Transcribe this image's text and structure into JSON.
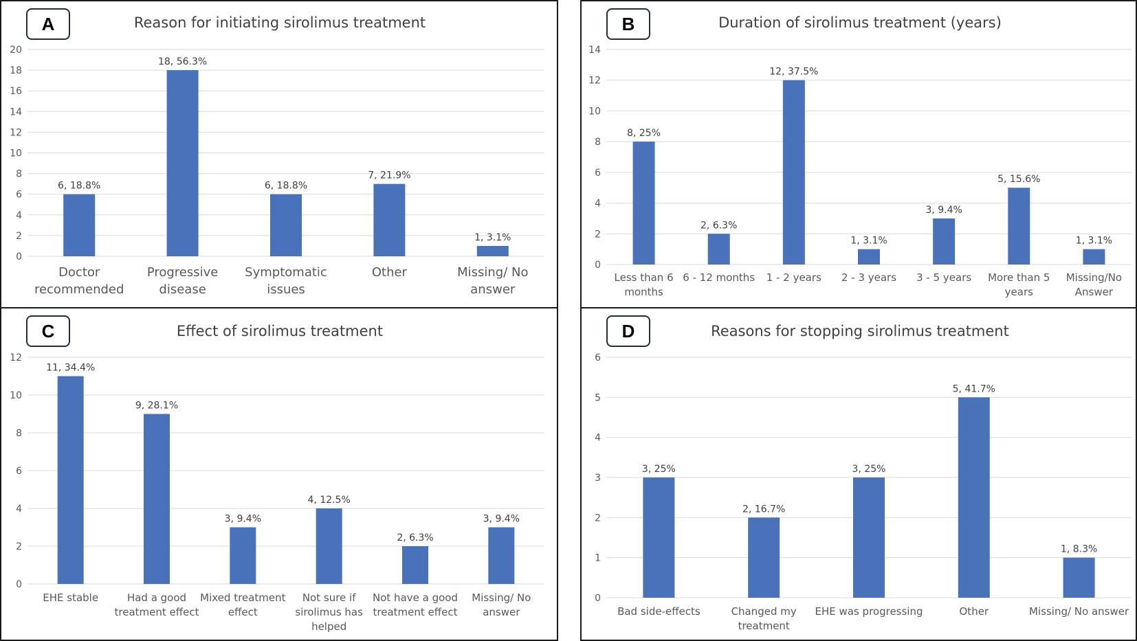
{
  "chart_data": [
    {
      "panel": "A",
      "type": "bar",
      "title": "Reason for initiating sirolimus treatment",
      "ylim": [
        0,
        20
      ],
      "ytick_step": 2,
      "categories": [
        [
          "Doctor",
          "recommended"
        ],
        [
          "Progressive",
          "disease"
        ],
        [
          "Symptomatic",
          "issues"
        ],
        [
          "Other"
        ],
        [
          "Missing/ No",
          "answer"
        ]
      ],
      "values": [
        6,
        18,
        6,
        7,
        1
      ],
      "data_labels": [
        "6, 18.8%",
        "18, 56.3%",
        "6, 18.8%",
        "7, 21.9%",
        "1, 3.1%"
      ],
      "xlabel": "",
      "ylabel": "",
      "grid": true
    },
    {
      "panel": "B",
      "type": "bar",
      "title": "Duration of sirolimus treatment (years)",
      "ylim": [
        0,
        14
      ],
      "ytick_step": 2,
      "categories": [
        [
          "Less than 6",
          "months"
        ],
        [
          "6 - 12 months"
        ],
        [
          "1 - 2 years"
        ],
        [
          "2 - 3 years"
        ],
        [
          "3 - 5 years"
        ],
        [
          "More than 5",
          "years"
        ],
        [
          "Missing/No",
          "Answer"
        ]
      ],
      "values": [
        8,
        2,
        12,
        1,
        3,
        5,
        1
      ],
      "data_labels": [
        "8, 25%",
        "2, 6.3%",
        "12, 37.5%",
        "1, 3.1%",
        "3, 9.4%",
        "5, 15.6%",
        "1, 3.1%"
      ],
      "xlabel": "",
      "ylabel": "",
      "grid": true
    },
    {
      "panel": "C",
      "type": "bar",
      "title": "Effect of sirolimus treatment",
      "ylim": [
        0,
        12
      ],
      "ytick_step": 2,
      "categories": [
        [
          "EHE stable"
        ],
        [
          "Had a good",
          "treatment effect"
        ],
        [
          "Mixed treatment",
          "effect"
        ],
        [
          "Not sure if",
          "sirolimus has",
          "helped"
        ],
        [
          "Not have a good",
          "treatment effect"
        ],
        [
          "Missing/ No",
          "answer"
        ]
      ],
      "values": [
        11,
        9,
        3,
        4,
        2,
        3
      ],
      "data_labels": [
        "11, 34.4%",
        "9, 28.1%",
        "3, 9.4%",
        "4, 12.5%",
        "2, 6.3%",
        "3, 9.4%"
      ],
      "xlabel": "",
      "ylabel": "",
      "grid": true
    },
    {
      "panel": "D",
      "type": "bar",
      "title": "Reasons for stopping sirolimus treatment",
      "ylim": [
        0,
        6
      ],
      "ytick_step": 1,
      "categories": [
        [
          "Bad side-effects"
        ],
        [
          "Changed my",
          "treatment"
        ],
        [
          "EHE was progressing"
        ],
        [
          "Other"
        ],
        [
          "Missing/ No answer"
        ]
      ],
      "values": [
        3,
        2,
        3,
        5,
        1
      ],
      "data_labels": [
        "3, 25%",
        "2, 16.7%",
        "3, 25%",
        "5, 41.7%",
        "1, 8.3%"
      ],
      "xlabel": "",
      "ylabel": "",
      "grid": true
    }
  ],
  "colors": {
    "bar": "#4a72b8",
    "grid": "#d9d9d9",
    "axis_text": "#595959",
    "title_text": "#404040"
  }
}
